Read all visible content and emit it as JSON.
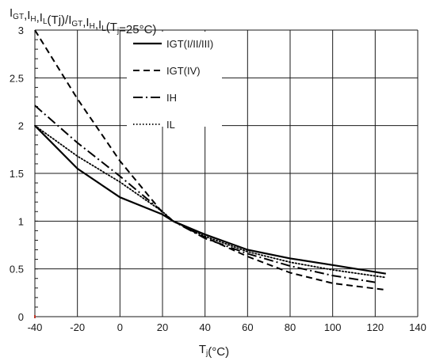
{
  "chart_data": {
    "type": "line",
    "title": "",
    "ylabel": "I_GT,I_H,I_L(Tj)/I_GT,I_H,I_L(T_j=25°C)",
    "xlabel": "T_j(°C)",
    "xlim": [
      -40,
      140
    ],
    "ylim": [
      0,
      3
    ],
    "xticks": [
      "-40",
      "-20",
      "0",
      "20",
      "40",
      "60",
      "80",
      "100",
      "120",
      "140"
    ],
    "yticks": [
      "0",
      "0.5",
      "1",
      "1.5",
      "2",
      "2.5",
      "3"
    ],
    "grid": true,
    "legend_position": "top-center",
    "series": [
      {
        "name": "IGT(I/II/III)",
        "style": "solid",
        "color": "#000000",
        "x": [
          -40,
          -20,
          0,
          20,
          25,
          40,
          60,
          80,
          100,
          125
        ],
        "y": [
          2.0,
          1.55,
          1.25,
          1.07,
          1.0,
          0.86,
          0.7,
          0.61,
          0.54,
          0.45
        ]
      },
      {
        "name": "IGT(IV)",
        "style": "dashed",
        "color": "#000000",
        "x": [
          -40,
          -20,
          0,
          20,
          25,
          40,
          60,
          80,
          100,
          125
        ],
        "y": [
          3.0,
          2.28,
          1.63,
          1.09,
          1.0,
          0.83,
          0.63,
          0.46,
          0.35,
          0.28
        ]
      },
      {
        "name": "IH",
        "style": "dashdot",
        "color": "#000000",
        "x": [
          -40,
          -20,
          0,
          20,
          25,
          40,
          60,
          80,
          100,
          120
        ],
        "y": [
          2.21,
          1.82,
          1.47,
          1.1,
          1.0,
          0.82,
          0.66,
          0.53,
          0.43,
          0.36
        ]
      },
      {
        "name": "IL",
        "style": "dotted",
        "color": "#000000",
        "x": [
          -40,
          -20,
          0,
          20,
          25,
          40,
          60,
          80,
          100,
          125
        ],
        "y": [
          2.0,
          1.68,
          1.41,
          1.1,
          1.0,
          0.84,
          0.68,
          0.57,
          0.49,
          0.41
        ]
      }
    ]
  }
}
